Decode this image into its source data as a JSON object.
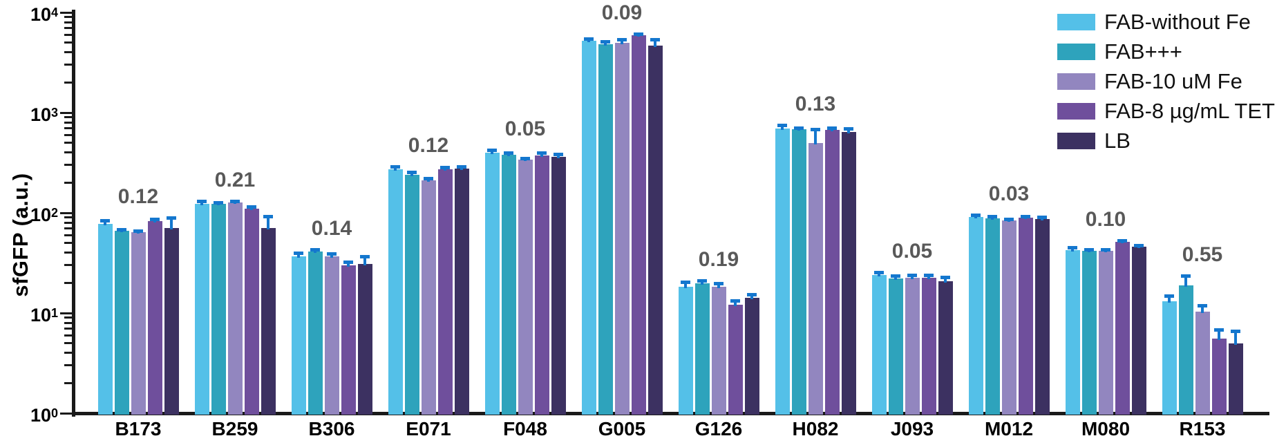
{
  "figure": {
    "ylabel": "sfGFP (a.u.)"
  },
  "legend": {
    "position": "top-right",
    "items": [
      {
        "label": "FAB-without Fe",
        "color": "#54C0E8"
      },
      {
        "label": "FAB+++",
        "color": "#2EA3BC"
      },
      {
        "label": "FAB-10 uM Fe",
        "color": "#9286BF"
      },
      {
        "label": "FAB-8 µg/mL TET",
        "color": "#6F4F9C"
      },
      {
        "label": "LB",
        "color": "#3C3161"
      }
    ]
  },
  "chart_data": {
    "type": "bar",
    "title": "",
    "xlabel": "",
    "ylabel": "sfGFP (a.u.)",
    "y_scale": "log10",
    "ylim": [
      1,
      10000
    ],
    "y_tick_exponents": [
      0,
      1,
      2,
      3,
      4
    ],
    "grid": false,
    "legend_position": "top-right",
    "error_bar_color": "#1477CE",
    "annotation_color": "#595959",
    "categories": [
      "B173",
      "B259",
      "B306",
      "E071",
      "F048",
      "G005",
      "G126",
      "H082",
      "J093",
      "M012",
      "M080",
      "R153"
    ],
    "group_annotations": [
      "0.12",
      "0.21",
      "0.14",
      "0.12",
      "0.05",
      "0.09",
      "0.19",
      "0.13",
      "0.05",
      "0.03",
      "0.10",
      "0.55"
    ],
    "series": [
      {
        "name": "FAB-without Fe",
        "color": "#54C0E8",
        "values": [
          78,
          122,
          37,
          272,
          400,
          5200,
          18.4,
          690,
          24,
          91,
          42.5,
          13.2
        ],
        "err_upper": [
          84,
          132,
          40,
          290,
          425,
          5500,
          20.5,
          750,
          25.5,
          95,
          45.5,
          14.8
        ]
      },
      {
        "name": "FAB+++",
        "color": "#2EA3BC",
        "values": [
          66,
          122,
          41,
          240,
          378,
          4800,
          19.9,
          680,
          22.2,
          88,
          41.5,
          19
        ],
        "err_upper": [
          68,
          126,
          43,
          255,
          395,
          5100,
          21,
          710,
          23.5,
          92,
          43,
          23.5
        ]
      },
      {
        "name": "FAB-10 uM Fe",
        "color": "#9286BF",
        "values": [
          64,
          126,
          37,
          210,
          338,
          4950,
          18.2,
          495,
          22.6,
          84,
          41.5,
          10.3
        ],
        "err_upper": [
          66,
          130,
          39,
          220,
          350,
          5400,
          19.8,
          680,
          24,
          86,
          43,
          12
        ]
      },
      {
        "name": "FAB-8 µg/mL TET",
        "color": "#6F4F9C",
        "values": [
          83,
          110,
          30,
          272,
          375,
          5950,
          12.1,
          670,
          22.6,
          90,
          51,
          5.6
        ],
        "err_upper": [
          87,
          116,
          32.5,
          287,
          395,
          6150,
          13.3,
          700,
          24,
          93,
          53,
          6.8
        ]
      },
      {
        "name": "LB",
        "color": "#3C3161",
        "values": [
          70,
          70,
          31,
          277,
          362,
          4700,
          14.1,
          640,
          20.6,
          86,
          46,
          5.0
        ],
        "err_upper": [
          89,
          92,
          37,
          292,
          385,
          5400,
          15.3,
          690,
          23,
          91,
          47.5,
          6.6
        ]
      }
    ]
  }
}
